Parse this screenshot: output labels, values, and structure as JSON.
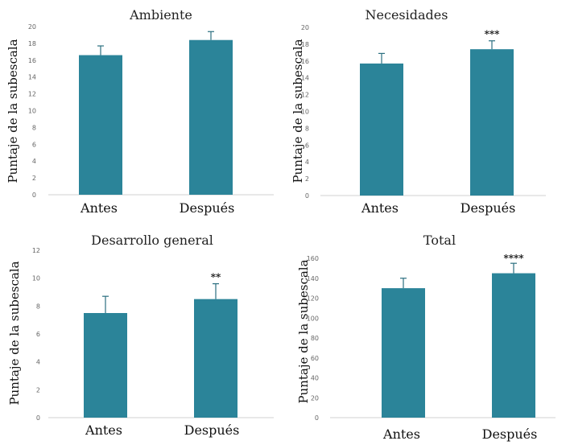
{
  "chart_data": [
    {
      "type": "bar",
      "title": "Ambiente",
      "ylabel": "Puntaje de la subescala",
      "categories": [
        "Antes",
        "Después"
      ],
      "values": [
        16.6,
        18.4
      ],
      "errors": [
        1.1,
        1.0
      ],
      "significance": [
        "",
        ""
      ],
      "ylim": [
        0,
        20
      ],
      "yticks": [
        "0",
        "2",
        "4",
        "6",
        "8",
        "10",
        "12",
        "14",
        "16",
        "18",
        "20"
      ],
      "color": "#2b8499"
    },
    {
      "type": "bar",
      "title": "Necesidades",
      "ylabel": "Puntaje de la subescala",
      "categories": [
        "Antes",
        "Después"
      ],
      "values": [
        15.7,
        17.4
      ],
      "errors": [
        1.2,
        1.0
      ],
      "significance": [
        "",
        "***"
      ],
      "ylim": [
        0,
        20
      ],
      "yticks": [
        "0",
        "2",
        "4",
        "6",
        "8",
        "10",
        "12",
        "14",
        "16",
        "18",
        "20"
      ],
      "color": "#2b8499"
    },
    {
      "type": "bar",
      "title": "Desarrollo general",
      "ylabel": "Puntaje de la subescala",
      "categories": [
        "Antes",
        "Después"
      ],
      "values": [
        7.5,
        8.5
      ],
      "errors": [
        1.2,
        1.1
      ],
      "significance": [
        "",
        "**"
      ],
      "ylim": [
        0,
        12
      ],
      "yticks": [
        "0",
        "2",
        "4",
        "6",
        "8",
        "10",
        "12"
      ],
      "color": "#2b8499"
    },
    {
      "type": "bar",
      "title": "Total",
      "ylabel": "Puntaje de la subescala",
      "categories": [
        "Antes",
        "Después"
      ],
      "values": [
        130,
        145
      ],
      "errors": [
        10,
        10
      ],
      "significance": [
        "",
        "****"
      ],
      "ylim": [
        0,
        160
      ],
      "yticks": [
        "0",
        "20",
        "40",
        "60",
        "80",
        "100",
        "120",
        "140",
        "160"
      ],
      "color": "#2b8499"
    }
  ]
}
